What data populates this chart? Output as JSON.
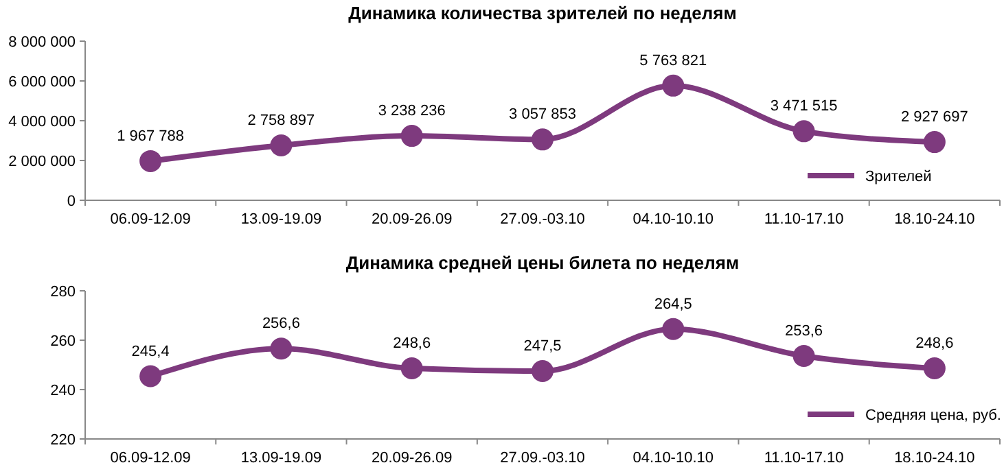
{
  "chart_data": [
    {
      "type": "line",
      "title": "Динамика количества зрителей по неделям",
      "categories": [
        "06.09-12.09",
        "13.09-19.09",
        "20.09-26.09",
        "27.09.-03.10",
        "04.10-10.10",
        "11.10-17.10",
        "18.10-24.10"
      ],
      "series": [
        {
          "name": "Зрителей",
          "color": "#7e3a7e",
          "values": [
            1967788,
            2758897,
            3238236,
            3057853,
            5763821,
            3471515,
            2927697
          ],
          "value_labels": [
            "1 967 788",
            "2 758 897",
            "3 238 236",
            "3 057 853",
            "5 763 821",
            "3 471 515",
            "2 927 697"
          ]
        }
      ],
      "ylim": [
        0,
        8000000
      ],
      "yticks": [
        0,
        {
          "value": 2000000,
          "label": "2 000 000"
        },
        {
          "value": 4000000,
          "label": "4 000 000"
        },
        {
          "value": 6000000,
          "label": "6 000 000"
        },
        {
          "value": 8000000,
          "label": "8 000 000"
        }
      ],
      "grid": false,
      "legend": "bottom right",
      "marker": "circle",
      "line_style": "solid"
    },
    {
      "type": "line",
      "title": "Динамика средней цены билета по неделям",
      "categories": [
        "06.09-12.09",
        "13.09-19.09",
        "20.09-26.09",
        "27.09.-03.10",
        "04.10-10.10",
        "11.10-17.10",
        "18.10-24.10"
      ],
      "series": [
        {
          "name": "Средняя цена, руб.",
          "color": "#7e3a7e",
          "values": [
            245.4,
            256.6,
            248.6,
            247.5,
            264.5,
            253.6,
            248.6
          ],
          "value_labels": [
            "245,4",
            "256,6",
            "248,6",
            "247,5",
            "264,5",
            "253,6",
            "248,6"
          ]
        }
      ],
      "ylim": [
        220,
        280
      ],
      "yticks": [
        220,
        240,
        260,
        280
      ],
      "grid": false,
      "legend": "bottom right",
      "marker": "circle",
      "line_style": "solid"
    }
  ]
}
